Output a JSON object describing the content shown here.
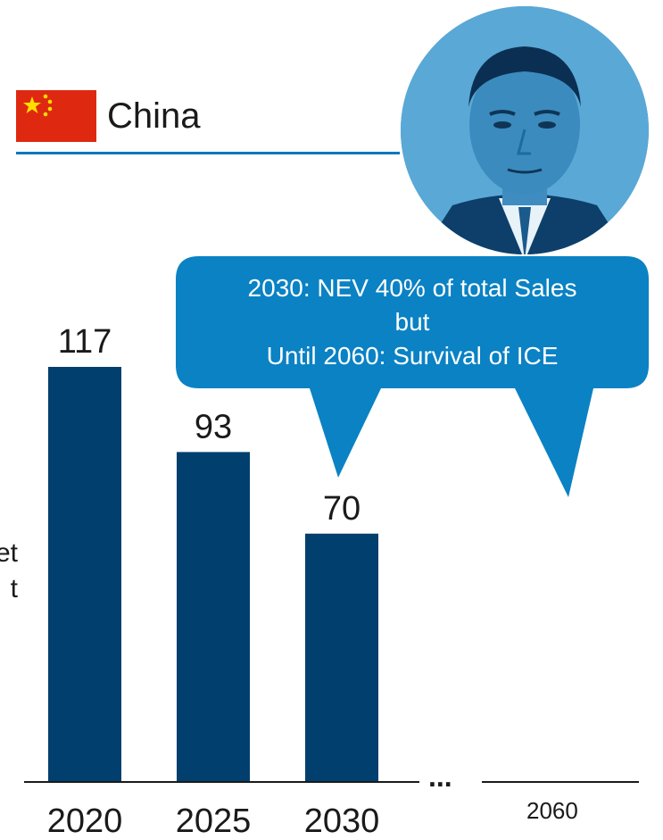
{
  "header": {
    "country": "China",
    "flag_colors": {
      "field": "#de2910",
      "stars": "#ffde00"
    },
    "rule_color": "#0078b8"
  },
  "side_text": {
    "line1": "et",
    "line2": "t"
  },
  "callout": {
    "color": "#0a82c4",
    "lines": [
      "2030: NEV 40% of total Sales",
      "but",
      "Until 2060: Survival of ICE"
    ]
  },
  "portrait": {
    "icon": "portrait-photo",
    "tint": "#2f8bc4"
  },
  "separator": "...",
  "chart_data": {
    "type": "bar",
    "categories": [
      "2020",
      "2025",
      "2030"
    ],
    "values": [
      117,
      93,
      70
    ],
    "extra_axis_label": "2060",
    "bar_color": "#003f6e",
    "ylim": [
      0,
      130
    ],
    "grid": false
  }
}
